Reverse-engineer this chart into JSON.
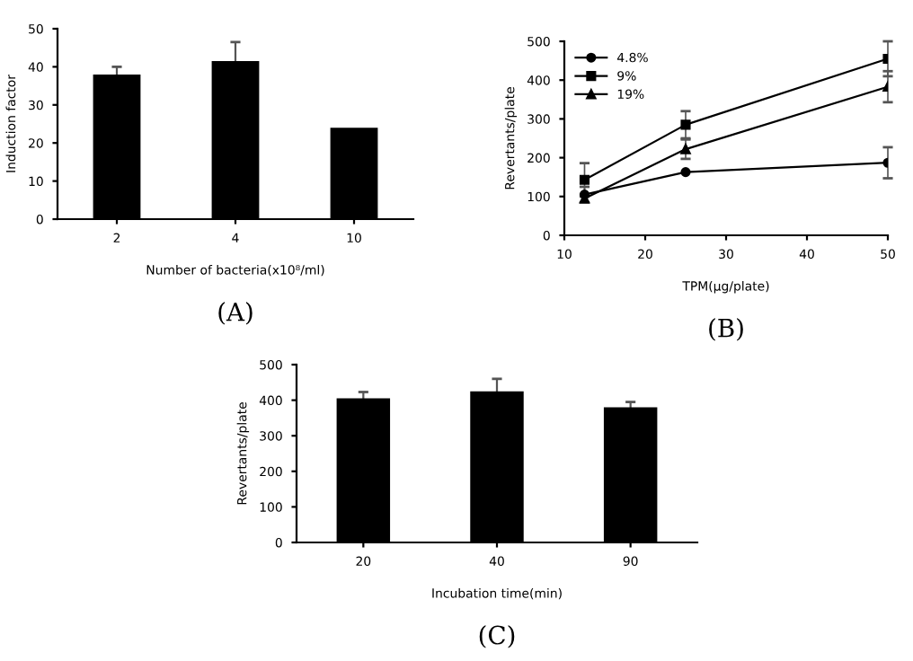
{
  "chart_data": [
    {
      "type": "bar",
      "categories": [
        "2",
        "4",
        "10"
      ],
      "values": [
        38,
        41.5,
        24
      ],
      "errors": [
        2,
        5,
        null
      ],
      "color": "#000000",
      "ylabel": "Induction factor",
      "xlabel": "Number of bacteria(x10⁸/ml)",
      "ylim": [
        0,
        50
      ],
      "yticks": [
        0,
        10,
        20,
        30,
        40,
        50
      ],
      "grid": false,
      "annotations": [
        "(A)"
      ]
    },
    {
      "type": "line",
      "x": [
        12.5,
        25,
        50
      ],
      "xlim": [
        10,
        50
      ],
      "xticks": [
        10,
        20,
        30,
        40,
        50
      ],
      "ylim": [
        0,
        500
      ],
      "yticks": [
        0,
        100,
        200,
        300,
        400,
        500
      ],
      "ylabel": "Revertants/plate",
      "xlabel": "TPM(μg/plate)",
      "grid": false,
      "legend": "top left",
      "annotations": [
        "(B)"
      ],
      "series": [
        {
          "name": "4.8%",
          "color": "#000000",
          "marker": "circle",
          "values": [
            105,
            163,
            187
          ],
          "errors": [
            20,
            null,
            40
          ]
        },
        {
          "name": "9%",
          "color": "#000000",
          "marker": "square",
          "values": [
            143,
            285,
            455
          ],
          "errors": [
            43,
            35,
            45
          ]
        },
        {
          "name": "19%",
          "color": "#000000",
          "marker": "triangle",
          "values": [
            95,
            222,
            383
          ],
          "errors": [
            10,
            25,
            40
          ]
        }
      ]
    },
    {
      "type": "bar",
      "categories": [
        "20",
        "40",
        "90"
      ],
      "values": [
        405,
        425,
        380
      ],
      "errors": [
        18,
        35,
        15
      ],
      "color": "#000000",
      "ylabel": "Revertants/plate",
      "xlabel": "Incubation time(min)",
      "ylim": [
        0,
        500
      ],
      "yticks": [
        0,
        100,
        200,
        300,
        400,
        500
      ],
      "grid": false,
      "annotations": [
        "(C)"
      ]
    }
  ]
}
